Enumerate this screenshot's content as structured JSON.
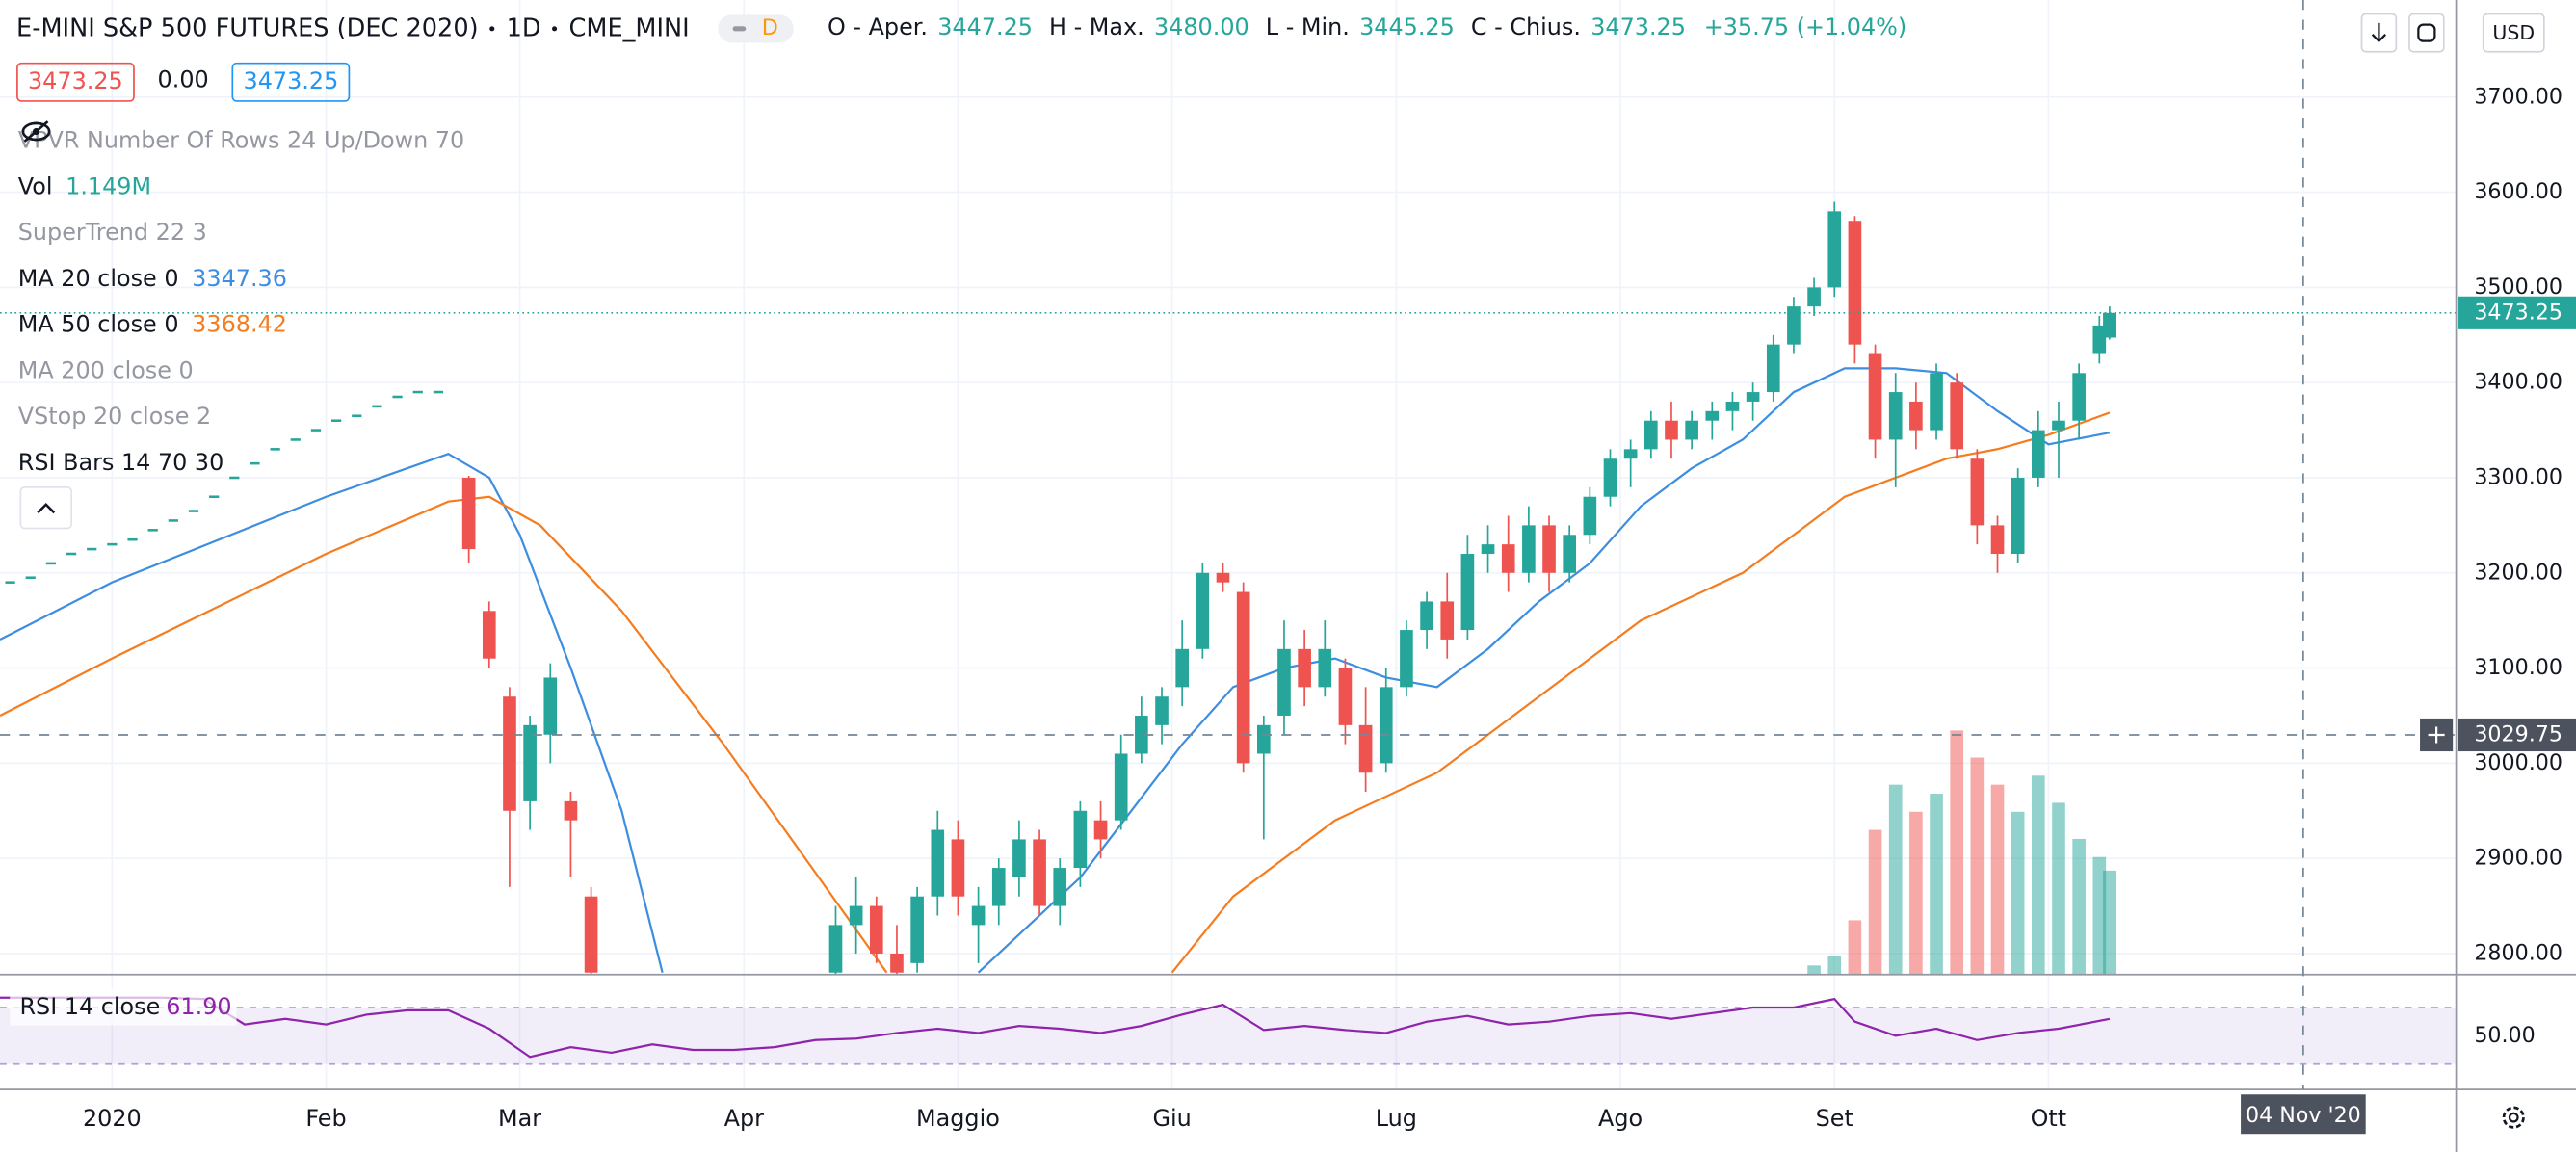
{
  "header": {
    "symbol": "E-MINI S&P 500 FUTURES (DEC 2020)",
    "interval": "1D",
    "exchange": "CME_MINI",
    "badge": "D",
    "ohlc": [
      {
        "label": "O - Aper.",
        "value": "3447.25"
      },
      {
        "label": "H - Max.",
        "value": "3480.00"
      },
      {
        "label": "L - Min.",
        "value": "3445.25"
      },
      {
        "label": "C - Chius.",
        "value": "3473.25"
      }
    ],
    "change": "+35.75 (+1.04%)",
    "currency": "USD"
  },
  "price_boxes": [
    "3473.25",
    "0.00",
    "3473.25"
  ],
  "indicators": [
    {
      "name": "VPVR Number Of Rows 24 Up/Down 70",
      "hidden": true
    },
    {
      "name": "SuperTrend 22 3",
      "hidden": true
    },
    {
      "name": "MA 200 close 0",
      "hidden": true
    },
    {
      "name": "VStop 20 close 2",
      "hidden": true
    },
    {
      "name": "RSI Bars 14 70 30",
      "hidden": false
    }
  ],
  "chart_data": {
    "type": "candlestick",
    "xlim": [
      -11,
      230
    ],
    "ylim": [
      2778,
      3802
    ],
    "yticks": [
      {
        "value": 2800,
        "label": "2800.00"
      },
      {
        "value": 2900,
        "label": "2900.00"
      },
      {
        "value": 3000,
        "label": "3000.00"
      },
      {
        "value": 3100,
        "label": "3100.00"
      },
      {
        "value": 3200,
        "label": "3200.00"
      },
      {
        "value": 3300,
        "label": "3300.00"
      },
      {
        "value": 3400,
        "label": "3400.00"
      },
      {
        "value": 3500,
        "label": "3500.00"
      },
      {
        "value": 3600,
        "label": "3600.00"
      },
      {
        "value": 3700,
        "label": "3700.00"
      }
    ],
    "xticks": [
      {
        "value": 0,
        "label": "2020"
      },
      {
        "value": 21,
        "label": "Feb"
      },
      {
        "value": 40,
        "label": "Mar"
      },
      {
        "value": 62,
        "label": "Apr"
      },
      {
        "value": 83,
        "label": "Maggio"
      },
      {
        "value": 104,
        "label": "Giu"
      },
      {
        "value": 126,
        "label": "Lug"
      },
      {
        "value": 148,
        "label": "Ago"
      },
      {
        "value": 169,
        "label": "Set"
      },
      {
        "value": 190,
        "label": "Ott"
      }
    ],
    "grid": true,
    "up_color": "#26a69a",
    "down_color": "#ef5350",
    "x": [
      35,
      37,
      39,
      41,
      43,
      45,
      47,
      71,
      73,
      75,
      77,
      79,
      81,
      83,
      85,
      87,
      89,
      91,
      93,
      95,
      97,
      99,
      101,
      103,
      105,
      107,
      109,
      111,
      113,
      115,
      117,
      119,
      121,
      123,
      125,
      127,
      129,
      131,
      133,
      135,
      137,
      139,
      141,
      143,
      145,
      147,
      149,
      151,
      153,
      155,
      157,
      159,
      161,
      163,
      165,
      167,
      169,
      171,
      173,
      175,
      177,
      179,
      181,
      183,
      185,
      187,
      189,
      191,
      193,
      195,
      196
    ],
    "ohlc": [
      [
        3300,
        3302,
        3210,
        3225
      ],
      [
        3160,
        3170,
        3100,
        3110
      ],
      [
        3070,
        3080,
        2870,
        2950
      ],
      [
        2960,
        3050,
        2930,
        3040
      ],
      [
        3030,
        3105,
        3000,
        3090
      ],
      [
        2960,
        2970,
        2880,
        2940
      ],
      [
        2860,
        2870,
        2760,
        2780
      ],
      [
        2780,
        2850,
        2770,
        2830
      ],
      [
        2830,
        2880,
        2800,
        2850
      ],
      [
        2850,
        2860,
        2790,
        2800
      ],
      [
        2800,
        2830,
        2760,
        2780
      ],
      [
        2790,
        2870,
        2780,
        2860
      ],
      [
        2860,
        2950,
        2840,
        2930
      ],
      [
        2920,
        2940,
        2840,
        2860
      ],
      [
        2830,
        2870,
        2790,
        2850
      ],
      [
        2850,
        2900,
        2830,
        2890
      ],
      [
        2880,
        2940,
        2860,
        2920
      ],
      [
        2920,
        2930,
        2840,
        2850
      ],
      [
        2850,
        2900,
        2830,
        2890
      ],
      [
        2890,
        2960,
        2870,
        2950
      ],
      [
        2940,
        2960,
        2900,
        2920
      ],
      [
        2940,
        3030,
        2930,
        3010
      ],
      [
        3010,
        3070,
        3000,
        3050
      ],
      [
        3040,
        3080,
        3020,
        3070
      ],
      [
        3080,
        3150,
        3060,
        3120
      ],
      [
        3120,
        3210,
        3110,
        3200
      ],
      [
        3200,
        3210,
        3180,
        3190
      ],
      [
        3180,
        3190,
        2990,
        3000
      ],
      [
        3010,
        3050,
        2920,
        3040
      ],
      [
        3050,
        3150,
        3030,
        3120
      ],
      [
        3120,
        3140,
        3060,
        3080
      ],
      [
        3080,
        3150,
        3070,
        3120
      ],
      [
        3100,
        3110,
        3020,
        3040
      ],
      [
        3040,
        3080,
        2970,
        2990
      ],
      [
        3000,
        3100,
        2990,
        3080
      ],
      [
        3080,
        3150,
        3070,
        3140
      ],
      [
        3140,
        3180,
        3120,
        3170
      ],
      [
        3170,
        3200,
        3110,
        3130
      ],
      [
        3140,
        3240,
        3130,
        3220
      ],
      [
        3220,
        3250,
        3200,
        3230
      ],
      [
        3230,
        3260,
        3180,
        3200
      ],
      [
        3200,
        3270,
        3190,
        3250
      ],
      [
        3250,
        3260,
        3180,
        3200
      ],
      [
        3200,
        3250,
        3190,
        3240
      ],
      [
        3240,
        3290,
        3230,
        3280
      ],
      [
        3280,
        3330,
        3270,
        3320
      ],
      [
        3320,
        3340,
        3290,
        3330
      ],
      [
        3330,
        3370,
        3320,
        3360
      ],
      [
        3360,
        3380,
        3320,
        3340
      ],
      [
        3340,
        3370,
        3330,
        3360
      ],
      [
        3360,
        3380,
        3340,
        3370
      ],
      [
        3370,
        3390,
        3350,
        3380
      ],
      [
        3380,
        3400,
        3360,
        3390
      ],
      [
        3390,
        3450,
        3380,
        3440
      ],
      [
        3440,
        3490,
        3430,
        3480
      ],
      [
        3480,
        3510,
        3470,
        3500
      ],
      [
        3500,
        3590,
        3490,
        3580
      ],
      [
        3570,
        3575,
        3420,
        3440
      ],
      [
        3430,
        3440,
        3320,
        3340
      ],
      [
        3340,
        3410,
        3290,
        3390
      ],
      [
        3380,
        3400,
        3330,
        3350
      ],
      [
        3350,
        3420,
        3340,
        3410
      ],
      [
        3400,
        3410,
        3320,
        3330
      ],
      [
        3320,
        3330,
        3230,
        3250
      ],
      [
        3250,
        3260,
        3200,
        3220
      ],
      [
        3220,
        3310,
        3210,
        3300
      ],
      [
        3300,
        3370,
        3290,
        3350
      ],
      [
        3350,
        3380,
        3300,
        3360
      ],
      [
        3360,
        3420,
        3340,
        3410
      ],
      [
        3430,
        3470,
        3420,
        3460
      ],
      [
        3447.25,
        3480,
        3445.25,
        3473.25
      ]
    ],
    "series": [
      {
        "name": "MA 20 close 0",
        "value_label": "3347.36",
        "color": "#3d8de0",
        "x": [
          -11,
          0,
          21,
          33,
          37,
          40,
          45,
          50,
          54,
          70,
          85,
          90,
          95,
          100,
          105,
          110,
          115,
          120,
          125,
          130,
          135,
          140,
          145,
          150,
          155,
          160,
          165,
          170,
          175,
          180,
          185,
          190,
          196
        ],
        "values": [
          3130,
          3190,
          3280,
          3325,
          3300,
          3240,
          3100,
          2950,
          2780,
          null,
          2780,
          2830,
          2880,
          2950,
          3020,
          3080,
          3100,
          3110,
          3090,
          3080,
          3120,
          3170,
          3210,
          3270,
          3310,
          3340,
          3390,
          3415,
          3415,
          3410,
          3370,
          3335,
          3347.36
        ]
      },
      {
        "name": "MA 50 close 0",
        "value_label": "3368.42",
        "color": "#f57c1f",
        "x": [
          -11,
          0,
          21,
          33,
          37,
          42,
          50,
          60,
          68,
          76,
          85,
          104,
          110,
          120,
          130,
          140,
          150,
          160,
          165,
          170,
          175,
          180,
          185,
          190,
          196
        ],
        "values": [
          3050,
          3110,
          3220,
          3275,
          3280,
          3250,
          3160,
          3020,
          2900,
          2780,
          null,
          2780,
          2860,
          2940,
          2990,
          3070,
          3150,
          3200,
          3240,
          3280,
          3300,
          3320,
          3330,
          3345,
          3368.42
        ]
      }
    ],
    "volume": {
      "name": "Vol",
      "value_label": "1.149M",
      "x": [
        167,
        169,
        171,
        173,
        175,
        177,
        179,
        181,
        183,
        185,
        187,
        189,
        191,
        193,
        195,
        196
      ],
      "values": [
        0.1,
        0.2,
        0.6,
        1.6,
        2.1,
        1.8,
        2.0,
        2.7,
        2.4,
        2.1,
        1.8,
        2.2,
        1.9,
        1.5,
        1.3,
        1.149
      ]
    },
    "markers": {
      "color": "#26a69a",
      "x": [
        -10,
        -8,
        -6,
        -4,
        -2,
        0,
        2,
        4,
        6,
        8,
        10,
        12,
        14,
        16,
        18,
        20,
        22,
        24,
        26,
        28,
        30,
        32
      ],
      "values": [
        3190,
        3195,
        3210,
        3220,
        3225,
        3230,
        3235,
        3245,
        3255,
        3265,
        3280,
        3300,
        3315,
        3330,
        3340,
        3350,
        3360,
        3365,
        3375,
        3385,
        3390,
        3390
      ]
    },
    "last_price": {
      "value": 3473.25,
      "label": "3473.25"
    },
    "crosshair": {
      "x": 215,
      "x_label": "04 Nov '20",
      "y": 3029.75,
      "y_label": "3029.75"
    },
    "rsi": {
      "name": "RSI 14 close",
      "value_label": "61.90",
      "color": "#8e24aa",
      "ylim": [
        12,
        91
      ],
      "yticks": [
        {
          "value": 50,
          "label": "50.00"
        }
      ],
      "bands": [
        30,
        70
      ],
      "x": [
        -11,
        -7,
        -3,
        1,
        5,
        9,
        13,
        17,
        21,
        25,
        29,
        33,
        37,
        41,
        45,
        49,
        53,
        57,
        61,
        65,
        69,
        73,
        77,
        81,
        85,
        89,
        93,
        97,
        101,
        105,
        109,
        113,
        117,
        121,
        125,
        129,
        133,
        137,
        141,
        145,
        149,
        153,
        157,
        161,
        165,
        169,
        171,
        175,
        179,
        183,
        187,
        191,
        196
      ],
      "values": [
        77,
        77,
        77,
        77,
        77,
        76,
        58,
        62,
        58,
        65,
        68,
        68,
        55,
        35,
        42,
        38,
        44,
        40,
        40,
        42,
        47,
        48,
        52,
        55,
        52,
        57,
        55,
        52,
        57,
        65,
        72,
        54,
        57,
        54,
        52,
        60,
        64,
        58,
        60,
        64,
        66,
        62,
        66,
        70,
        70,
        76,
        60,
        50,
        55,
        47,
        52,
        55,
        61.9
      ]
    }
  }
}
